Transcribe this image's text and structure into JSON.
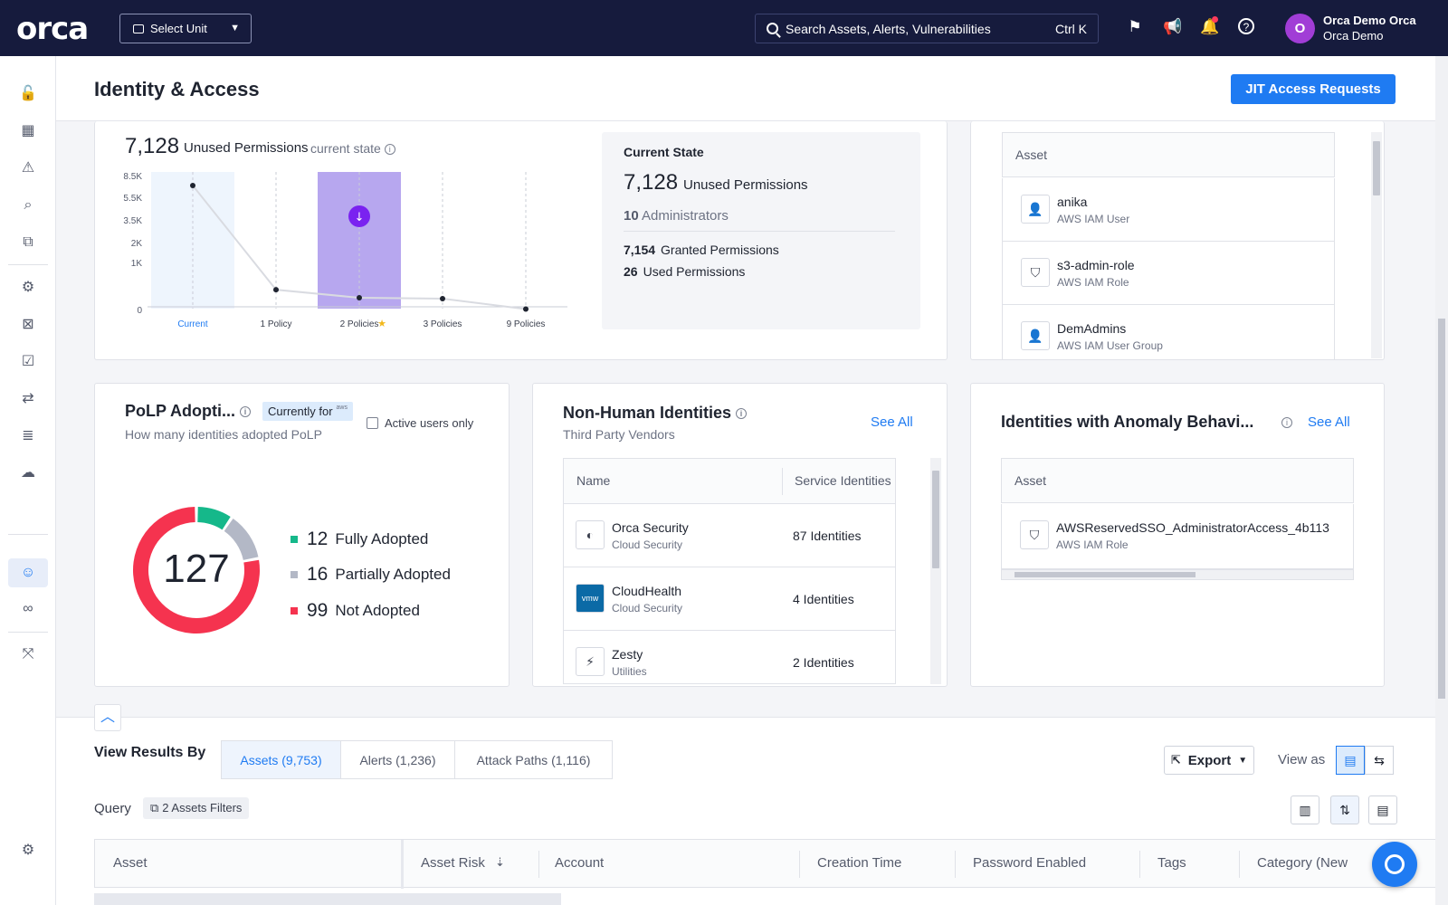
{
  "topbar": {
    "logo": "orca",
    "unit_select": "Select Unit",
    "search_placeholder": "Search Assets, Alerts, Vulnerabilities",
    "search_shortcut": "Ctrl K",
    "user_initial": "O",
    "user_name": "Orca Demo Orca",
    "user_org": "Orca Demo"
  },
  "page": {
    "title": "Identity & Access",
    "jit_button": "JIT Access Requests"
  },
  "unused_chart": {
    "count": "7,128",
    "label": "Unused Permissions",
    "state": "current state"
  },
  "chart_data": {
    "type": "line",
    "categories": [
      "Current",
      "1 Policy",
      "2 Policies",
      "3 Policies",
      "9 Policies"
    ],
    "values": [
      7128,
      420,
      250,
      230,
      10
    ],
    "y_ticks": [
      "8.5K",
      "5.5K",
      "3.5K",
      "2K",
      "1K",
      "0"
    ],
    "highlighted": "2 Policies",
    "xlabel": "",
    "ylabel": ""
  },
  "current_state": {
    "title": "Current State",
    "unused_count": "7,128",
    "unused_label": "Unused Permissions",
    "admins_count": "10",
    "admins_label": "Administrators",
    "granted_count": "7,154",
    "granted_label": "Granted Permissions",
    "used_count": "26",
    "used_label": "Used Permissions"
  },
  "assets_top": {
    "header": "Asset",
    "rows": [
      {
        "title": "anika",
        "sub": "AWS IAM User"
      },
      {
        "title": "s3-admin-role",
        "sub": "AWS IAM Role"
      },
      {
        "title": "DemAdmins",
        "sub": "AWS IAM User Group"
      }
    ]
  },
  "polp": {
    "title": "PoLP Adopti...",
    "badge": "Currently for",
    "badge_provider": "aws",
    "subtitle": "How many identities adopted PoLP",
    "active_users_label": "Active users only",
    "total": "127",
    "legend": [
      {
        "num": "12",
        "label": "Fully Adopted",
        "value": 12,
        "color": "#15b88a"
      },
      {
        "num": "16",
        "label": "Partially Adopted",
        "value": 16,
        "color": "#b3b8c6"
      },
      {
        "num": "99",
        "label": "Not Adopted",
        "value": 99,
        "color": "#f5334f"
      }
    ]
  },
  "nhi": {
    "title": "Non-Human Identities",
    "subtitle": "Third Party Vendors",
    "see_all": "See All",
    "col_name": "Name",
    "col_service": "Service Identities",
    "rows": [
      {
        "title": "Orca Security",
        "sub": "Cloud Security",
        "count": "87 Identities"
      },
      {
        "title": "CloudHealth",
        "sub": "Cloud Security",
        "count": "4 Identities"
      },
      {
        "title": "Zesty",
        "sub": "Utilities",
        "count": "2 Identities"
      }
    ]
  },
  "anomaly": {
    "title": "Identities with Anomaly Behavi...",
    "see_all": "See All",
    "header": "Asset",
    "rows": [
      {
        "title": "AWSReservedSSO_AdministratorAccess_4b113",
        "sub": "AWS IAM Role"
      }
    ]
  },
  "results": {
    "view_by": "View Results By",
    "tabs": [
      "Assets (9,753)",
      "Alerts (1,236)",
      "Attack Paths (1,116)"
    ],
    "export": "Export",
    "view_as": "View as",
    "query": "Query",
    "filter_chip": "2 Assets Filters",
    "columns": [
      "Asset",
      "Asset Risk",
      "Account",
      "Creation Time",
      "Password Enabled",
      "Tags",
      "Category (New"
    ]
  }
}
